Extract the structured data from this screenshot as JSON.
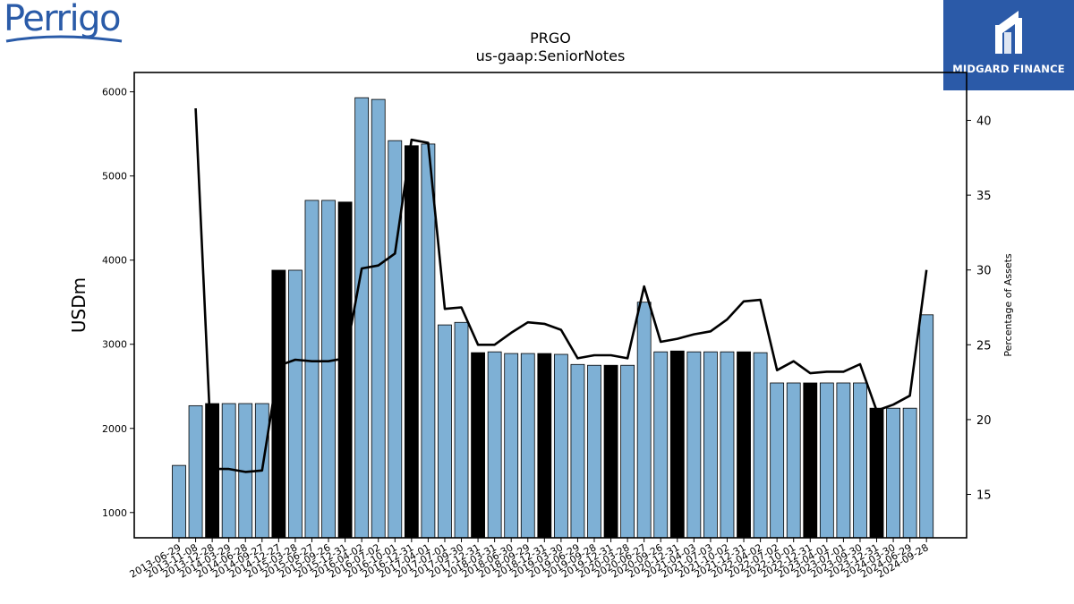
{
  "branding": {
    "left_logo": "Perrigo",
    "right_logo": "MIDGARD FINANCE",
    "brand_color": "#2b5aa8"
  },
  "chart_data": {
    "type": "bar",
    "title": "PRGO",
    "subtitle": "us-gaap:SeniorNotes",
    "ylabel": "USDm",
    "y2label": "Percentage of Assets",
    "ylim": [
      700,
      6230
    ],
    "y2lim": [
      12.1,
      43.2
    ],
    "yticks": [
      1000,
      2000,
      3000,
      4000,
      5000,
      6000
    ],
    "y2ticks": [
      15,
      20,
      25,
      30,
      35,
      40
    ],
    "bar_color": "#7eb0d5",
    "highlight_color": "#000000",
    "line_color": "#000000",
    "categories": [
      "2013-06-29",
      "2013-11-08",
      "2013-12-28",
      "2014-03-29",
      "2014-06-28",
      "2014-09-27",
      "2014-12-27",
      "2015-03-28",
      "2015-06-27",
      "2015-09-26",
      "2015-12-31",
      "2016-04-02",
      "2016-07-02",
      "2016-10-01",
      "2016-12-31",
      "2017-04-01",
      "2017-07-01",
      "2017-09-30",
      "2017-12-31",
      "2018-03-31",
      "2018-06-30",
      "2018-09-29",
      "2018-12-31",
      "2019-03-30",
      "2019-06-29",
      "2019-09-28",
      "2019-12-31",
      "2020-03-28",
      "2020-06-27",
      "2020-09-26",
      "2020-12-31",
      "2021-04-03",
      "2021-07-03",
      "2021-10-02",
      "2021-12-31",
      "2022-04-02",
      "2022-07-02",
      "2022-10-01",
      "2022-12-31",
      "2023-04-01",
      "2023-07-01",
      "2023-09-30",
      "2023-12-31",
      "2024-03-30",
      "2024-06-29",
      "2024-09-28"
    ],
    "series": [
      {
        "type": "bar",
        "axis": "left",
        "values": [
          1560,
          2270,
          2295,
          2295,
          2295,
          2295,
          3880,
          3880,
          4710,
          4710,
          4690,
          5930,
          5910,
          5420,
          5360,
          5380,
          3230,
          3260,
          2900,
          2910,
          2890,
          2890,
          2890,
          2880,
          2760,
          2750,
          2750,
          2750,
          3500,
          2910,
          2920,
          2910,
          2910,
          2910,
          2910,
          2900,
          2540,
          2540,
          2540,
          2540,
          2540,
          2540,
          2240,
          2240,
          2240,
          3350
        ],
        "highlight": [
          false,
          false,
          true,
          false,
          false,
          false,
          true,
          false,
          false,
          false,
          true,
          false,
          false,
          false,
          true,
          false,
          false,
          false,
          true,
          false,
          false,
          false,
          true,
          false,
          false,
          false,
          true,
          false,
          false,
          false,
          true,
          false,
          false,
          false,
          true,
          false,
          false,
          false,
          true,
          false,
          false,
          false,
          true,
          false,
          false,
          false
        ]
      },
      {
        "type": "line",
        "axis": "right",
        "values": [
          null,
          40.8,
          16.7,
          16.7,
          16.5,
          16.6,
          23.6,
          24.0,
          23.9,
          23.9,
          24.1,
          30.1,
          30.3,
          31.1,
          38.7,
          38.5,
          27.4,
          27.5,
          25.0,
          25.0,
          25.8,
          26.5,
          26.4,
          26.0,
          24.1,
          24.3,
          24.3,
          24.1,
          28.9,
          25.2,
          25.4,
          25.7,
          25.9,
          26.7,
          27.9,
          28.0,
          23.3,
          23.9,
          23.1,
          23.2,
          23.2,
          23.7,
          20.6,
          21.0,
          21.6,
          30.0
        ]
      }
    ]
  }
}
